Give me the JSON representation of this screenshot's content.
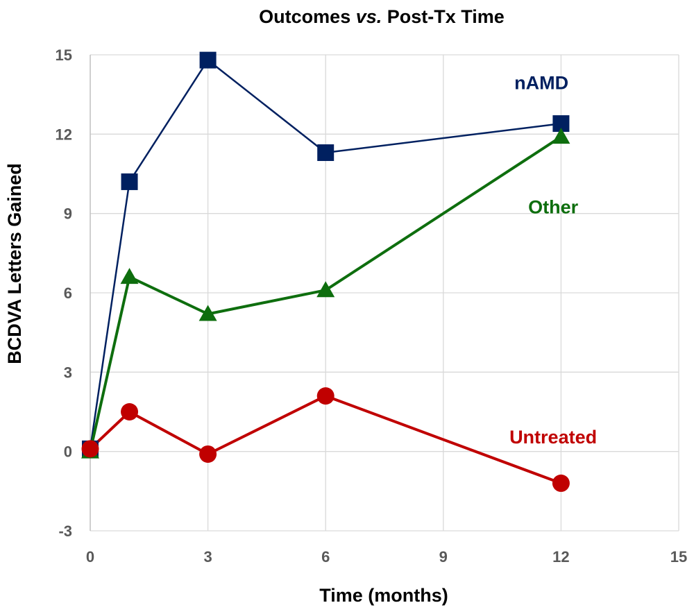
{
  "chart_data": {
    "type": "line",
    "title_main": "Outcomes ",
    "title_italic": "vs.",
    "title_rest": " Post-Tx Time",
    "xlabel": "Time (months)",
    "ylabel": "BCDVA Letters Gained",
    "xlim": [
      0,
      15
    ],
    "ylim": [
      -3,
      15
    ],
    "xticks": [
      0,
      3,
      6,
      9,
      12,
      15
    ],
    "yticks": [
      -3,
      0,
      3,
      6,
      9,
      12,
      15
    ],
    "grid": true,
    "series": [
      {
        "name": "nAMD",
        "color": "#002060",
        "marker": "square",
        "x": [
          0,
          1,
          3,
          6,
          12
        ],
        "y": [
          0.1,
          10.2,
          14.8,
          11.3,
          12.4
        ]
      },
      {
        "name": "Other",
        "color": "#0e6e0e",
        "marker": "triangle",
        "x": [
          0,
          1,
          3,
          6,
          12
        ],
        "y": [
          0.0,
          6.6,
          5.2,
          6.1,
          11.9
        ]
      },
      {
        "name": "Untreated",
        "color": "#c00000",
        "marker": "circle",
        "x": [
          0,
          1,
          3,
          6,
          12
        ],
        "y": [
          0.1,
          1.5,
          -0.1,
          2.1,
          -1.2
        ]
      }
    ]
  }
}
